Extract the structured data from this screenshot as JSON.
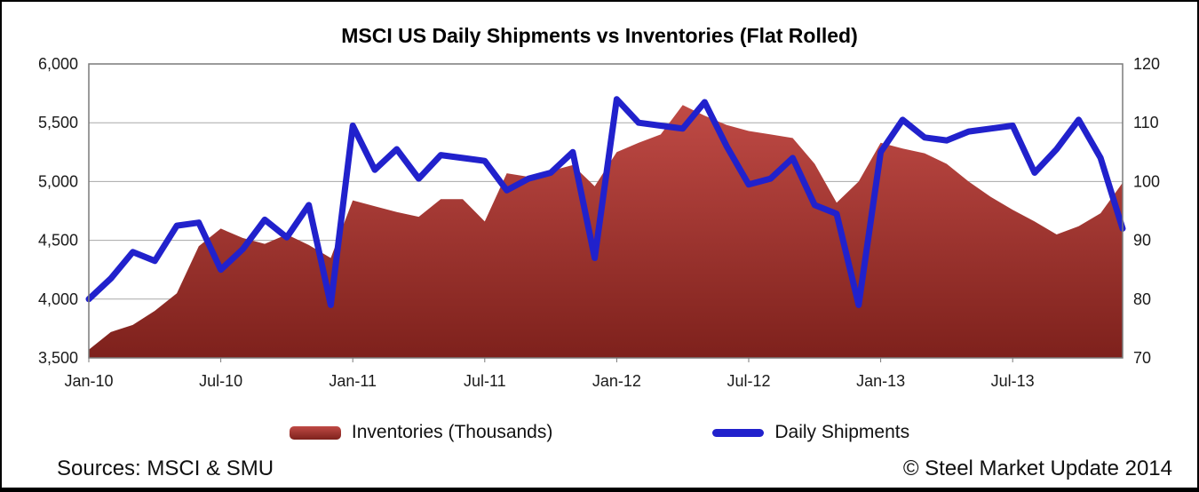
{
  "chart_data": {
    "type": "area+line",
    "title": "MSCI US Daily Shipments vs Inventories (Flat Rolled)",
    "categories": [
      "Jan-10",
      "Feb-10",
      "Mar-10",
      "Apr-10",
      "May-10",
      "Jun-10",
      "Jul-10",
      "Aug-10",
      "Sep-10",
      "Oct-10",
      "Nov-10",
      "Dec-10",
      "Jan-11",
      "Feb-11",
      "Mar-11",
      "Apr-11",
      "May-11",
      "Jun-11",
      "Jul-11",
      "Aug-11",
      "Sep-11",
      "Oct-11",
      "Nov-11",
      "Dec-11",
      "Jan-12",
      "Feb-12",
      "Mar-12",
      "Apr-12",
      "May-12",
      "Jun-12",
      "Jul-12",
      "Aug-12",
      "Sep-12",
      "Oct-12",
      "Nov-12",
      "Dec-12",
      "Jan-13",
      "Feb-13",
      "Mar-13",
      "Apr-13",
      "May-13",
      "Jun-13",
      "Jul-13",
      "Aug-13",
      "Sep-13",
      "Oct-13",
      "Nov-13",
      "Dec-13"
    ],
    "x_tick_labels": [
      "Jan-10",
      "Jul-10",
      "Jan-11",
      "Jul-11",
      "Jan-12",
      "Jul-12",
      "Jan-13",
      "Jul-13"
    ],
    "x_tick_indices": [
      0,
      6,
      12,
      18,
      24,
      30,
      36,
      42
    ],
    "series": [
      {
        "name": "Inventories (Thousands)",
        "type": "area",
        "axis": "left",
        "color_top": "#bf4a45",
        "color_bottom": "#7e211c",
        "values": [
          3570,
          3720,
          3780,
          3900,
          4050,
          4450,
          4600,
          4520,
          4470,
          4550,
          4460,
          4350,
          4840,
          4790,
          4740,
          4700,
          4850,
          4850,
          4660,
          5070,
          5040,
          5090,
          5140,
          4960,
          5250,
          5330,
          5400,
          5650,
          5560,
          5480,
          5430,
          5400,
          5370,
          5150,
          4820,
          5000,
          5330,
          5280,
          5240,
          5150,
          5000,
          4870,
          4760,
          4660,
          4550,
          4620,
          4730,
          4990
        ]
      },
      {
        "name": "Daily Shipments",
        "type": "line",
        "axis": "right",
        "color": "#2121cc",
        "values": [
          80,
          83.5,
          88,
          86.5,
          92.5,
          93,
          85,
          88.5,
          93.5,
          90.5,
          96,
          79,
          109.5,
          102,
          105.5,
          100.5,
          104.5,
          104,
          103.5,
          98.5,
          100.5,
          101.5,
          105,
          87,
          114,
          110,
          109.5,
          109,
          113.5,
          106,
          99.5,
          100.5,
          104,
          96,
          94.5,
          79,
          105,
          110.5,
          107.5,
          107,
          108.5,
          109,
          109.5,
          101.5,
          105.5,
          110.5,
          104,
          92
        ]
      }
    ],
    "left_axis": {
      "min": 3500,
      "max": 6000,
      "step": 500,
      "tick_labels": [
        "3,500",
        "4,000",
        "4,500",
        "5,000",
        "5,500",
        "6,000"
      ]
    },
    "right_axis": {
      "min": 70,
      "max": 120,
      "step": 10,
      "tick_labels": [
        "70",
        "80",
        "90",
        "100",
        "110",
        "120"
      ]
    },
    "grid": true,
    "legend_position": "bottom"
  },
  "footer": {
    "sources": "Sources: MSCI & SMU",
    "copyright": "© Steel Market Update 2014"
  }
}
